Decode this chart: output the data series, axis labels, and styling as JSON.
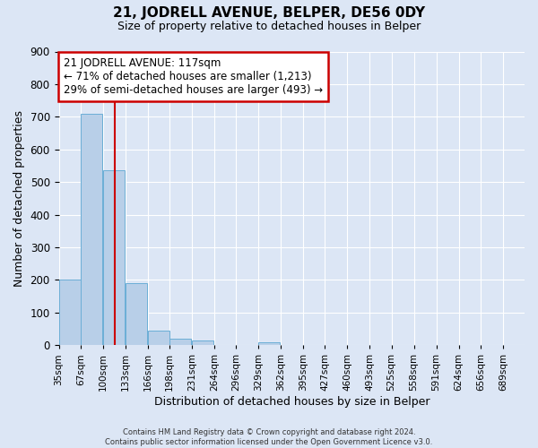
{
  "title": "21, JODRELL AVENUE, BELPER, DE56 0DY",
  "subtitle": "Size of property relative to detached houses in Belper",
  "xlabel": "Distribution of detached houses by size in Belper",
  "ylabel": "Number of detached properties",
  "footer_line1": "Contains HM Land Registry data © Crown copyright and database right 2024.",
  "footer_line2": "Contains public sector information licensed under the Open Government Licence v3.0.",
  "annotation_title": "21 JODRELL AVENUE: 117sqm",
  "annotation_line1": "← 71% of detached houses are smaller (1,213)",
  "annotation_line2": "29% of semi-detached houses are larger (493) →",
  "bin_edges": [
    35,
    67,
    100,
    133,
    166,
    198,
    231,
    264,
    296,
    329,
    362,
    395,
    427,
    460,
    493,
    525,
    558,
    591,
    624,
    656,
    689
  ],
  "bin_labels": [
    "35sqm",
    "67sqm",
    "100sqm",
    "133sqm",
    "166sqm",
    "198sqm",
    "231sqm",
    "264sqm",
    "296sqm",
    "329sqm",
    "362sqm",
    "395sqm",
    "427sqm",
    "460sqm",
    "493sqm",
    "525sqm",
    "558sqm",
    "591sqm",
    "624sqm",
    "656sqm",
    "689sqm"
  ],
  "bar_heights": [
    200,
    710,
    535,
    190,
    45,
    20,
    15,
    0,
    0,
    10,
    0,
    0,
    0,
    0,
    0,
    0,
    0,
    0,
    0,
    0
  ],
  "bar_color": "#b8cfe8",
  "bar_edge_color": "#6baed6",
  "red_line_x": 117,
  "ylim": [
    0,
    900
  ],
  "yticks": [
    0,
    100,
    200,
    300,
    400,
    500,
    600,
    700,
    800,
    900
  ],
  "bg_color": "#dce6f5",
  "plot_bg_color": "#dce6f5",
  "grid_color": "#ffffff",
  "annotation_box_color": "#ffffff",
  "annotation_box_edge": "#cc0000",
  "red_line_color": "#cc0000",
  "title_fontsize": 11,
  "subtitle_fontsize": 9
}
